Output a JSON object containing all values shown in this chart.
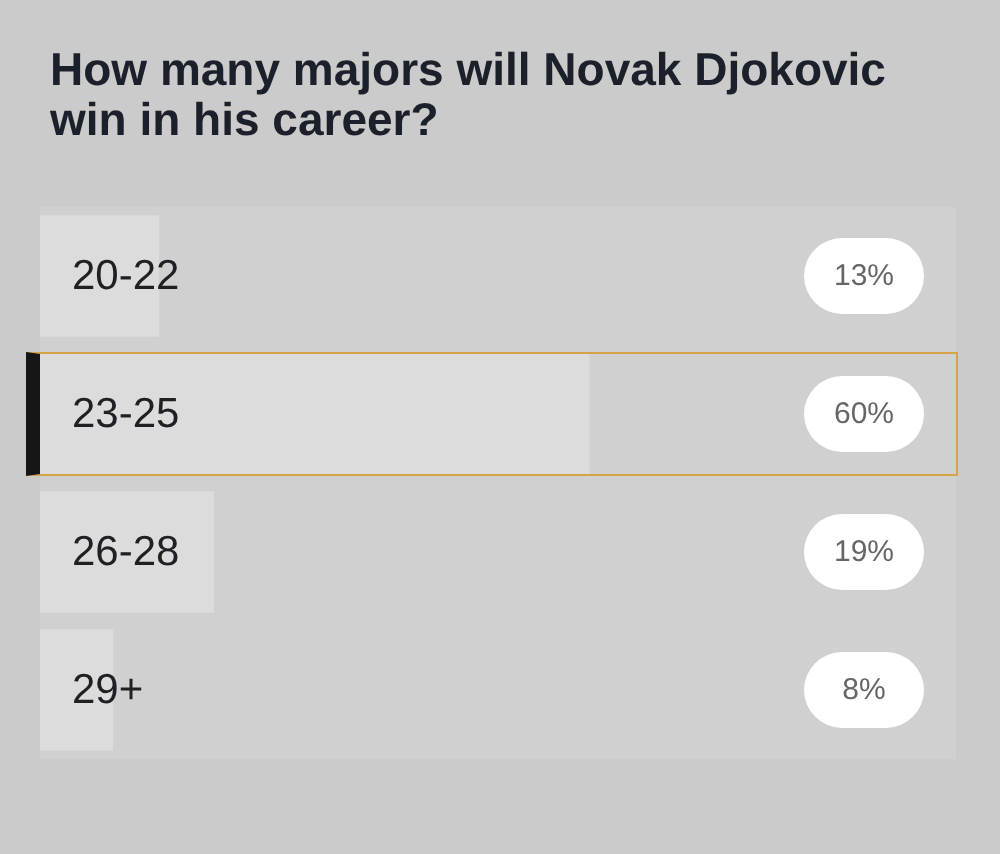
{
  "chart_data": {
    "type": "bar",
    "orientation": "horizontal",
    "title": "How many majors will Novak Djokovic win in his career?",
    "categories": [
      "20-22",
      "23-25",
      "26-28",
      "29+"
    ],
    "values": [
      13,
      60,
      19,
      8
    ],
    "color": "#dcdcdd",
    "value_labels": [
      "13%",
      "60%",
      "19%",
      "8%"
    ],
    "tick_labels": "y"
  }
}
